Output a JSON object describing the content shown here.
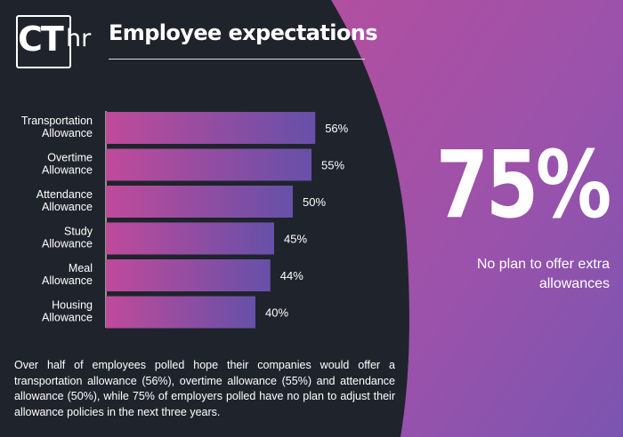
{
  "header": {
    "logo_ct": "CT",
    "logo_hr": "hr",
    "title": "Employee expectations"
  },
  "colors": {
    "background": "#1f242c",
    "panel_gradient_start": "#b050a0",
    "panel_gradient_end": "#7a55b0",
    "bar_gradient_start": "#c04a9a",
    "bar_gradient_end": "#6650a8"
  },
  "chart_data": {
    "type": "bar",
    "orientation": "horizontal",
    "categories": [
      [
        "Transportation",
        "Allowance"
      ],
      [
        "Overtime",
        "Allowance"
      ],
      [
        "Attendance",
        "Allowance"
      ],
      [
        "Study",
        "Allowance"
      ],
      [
        "Meal",
        "Allowance"
      ],
      [
        "Housing",
        "Allowance"
      ]
    ],
    "values": [
      56,
      55,
      50,
      45,
      44,
      40
    ],
    "value_labels": [
      "56%",
      "55%",
      "50%",
      "45%",
      "44%",
      "40%"
    ],
    "unit": "%",
    "xlim": [
      0,
      100
    ],
    "grid": false,
    "legend": "none"
  },
  "highlight": {
    "value": "75%",
    "caption": "No plan to offer extra allowances"
  },
  "summary": "Over half of employees polled hope their companies would offer a transportation allowance (56%), overtime allowance (55%) and attendance allowance (50%), while 75% of employers polled have no plan to adjust their allowance policies in the next three years."
}
